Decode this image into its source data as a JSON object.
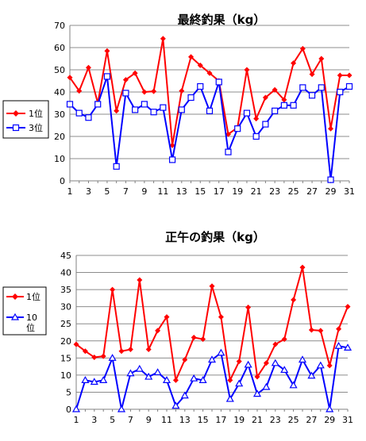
{
  "chart_data": [
    {
      "type": "line",
      "title": "最終釣果（kg）",
      "x": [
        1,
        2,
        3,
        4,
        5,
        6,
        7,
        8,
        9,
        10,
        11,
        12,
        13,
        14,
        15,
        16,
        17,
        18,
        19,
        20,
        21,
        22,
        23,
        24,
        25,
        26,
        27,
        28,
        29,
        30,
        31
      ],
      "x_tick_labels": [
        "1",
        "3",
        "5",
        "7",
        "9",
        "11",
        "13",
        "15",
        "17",
        "19",
        "21",
        "23",
        "25",
        "27",
        "29",
        "31"
      ],
      "ylim": [
        0,
        70
      ],
      "y_ticks": [
        0,
        10,
        20,
        30,
        40,
        50,
        60,
        70
      ],
      "grid": true,
      "legend_position": "left",
      "series": [
        {
          "name": "1位",
          "color": "#ff0000",
          "marker": "diamond",
          "values": [
            46.5,
            40.5,
            51,
            35,
            58.5,
            31.5,
            45.5,
            48.5,
            40,
            40.3,
            64,
            16,
            40.5,
            55.8,
            52,
            48.5,
            45,
            21,
            24,
            50,
            28,
            37.5,
            41,
            36.5,
            53,
            59.5,
            48,
            55,
            23.5,
            47.5,
            47.5
          ]
        },
        {
          "name": "3位",
          "color": "#0000ff",
          "marker": "square",
          "values": [
            34.5,
            30.5,
            28.5,
            34.5,
            47,
            6.5,
            39.5,
            32,
            34.5,
            31,
            33,
            9.5,
            32,
            37.5,
            42.5,
            31.5,
            44.5,
            13,
            23.5,
            30.5,
            20,
            25.5,
            31.5,
            34,
            34,
            42,
            38.5,
            42,
            0.5,
            40,
            42.5
          ]
        }
      ]
    },
    {
      "type": "line",
      "title": "正午の釣果（kg）",
      "x": [
        1,
        2,
        3,
        4,
        5,
        6,
        7,
        8,
        9,
        10,
        11,
        12,
        13,
        14,
        15,
        16,
        17,
        18,
        19,
        20,
        21,
        22,
        23,
        24,
        25,
        26,
        27,
        28,
        29,
        30,
        31
      ],
      "x_tick_labels": [
        "1",
        "3",
        "5",
        "7",
        "9",
        "11",
        "13",
        "15",
        "17",
        "19",
        "21",
        "23",
        "25",
        "27",
        "29",
        "31"
      ],
      "ylim": [
        0,
        45
      ],
      "y_ticks": [
        0,
        5,
        10,
        15,
        20,
        25,
        30,
        35,
        40,
        45
      ],
      "grid": true,
      "legend_position": "left",
      "series": [
        {
          "name": "1位",
          "color": "#ff0000",
          "marker": "diamond",
          "values": [
            19,
            17,
            15.2,
            15.5,
            35,
            17,
            17.5,
            37.8,
            17.5,
            23,
            27,
            8.5,
            14.5,
            21,
            20.5,
            36,
            27,
            8.5,
            14,
            29.8,
            9.5,
            13.5,
            19,
            20.5,
            32,
            41.5,
            23.2,
            23,
            12.8,
            23.5,
            30
          ]
        },
        {
          "name": "10位",
          "color": "#0000ff",
          "marker": "triangle",
          "values": [
            0,
            8.5,
            8,
            8.5,
            15,
            0,
            10.5,
            11.8,
            9.5,
            10.8,
            8.5,
            1,
            4,
            9,
            8.5,
            14.5,
            16.5,
            3,
            7.5,
            13,
            4.5,
            6.5,
            13.5,
            11.5,
            7,
            14.5,
            9.8,
            12.8,
            0,
            18.5,
            18
          ]
        }
      ]
    }
  ]
}
